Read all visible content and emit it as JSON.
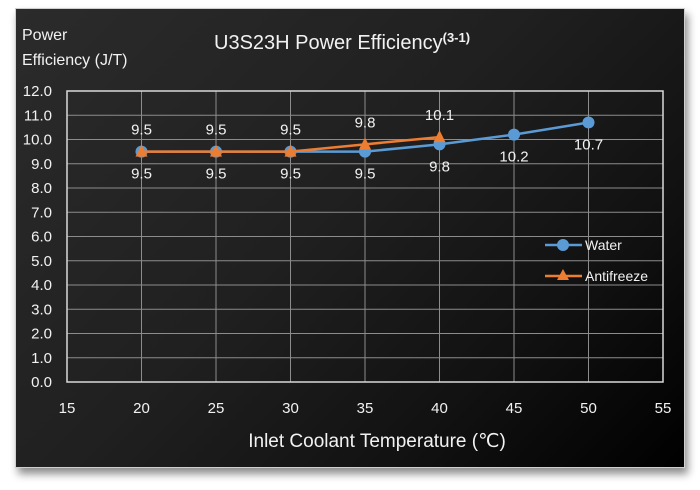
{
  "chart_data": {
    "type": "line",
    "title": "U3S23H Power Efficiency",
    "title_superscript": "(3-1)",
    "ylabel_line1": "Power",
    "ylabel_line2": "Efficiency (J/T)",
    "xlabel": "Inlet Coolant Temperature (℃)",
    "xlim": [
      15,
      55
    ],
    "ylim": [
      0,
      12
    ],
    "xticks": [
      15,
      20,
      25,
      30,
      35,
      40,
      45,
      50,
      55
    ],
    "yticks": [
      "0.0",
      "1.0",
      "2.0",
      "3.0",
      "4.0",
      "5.0",
      "6.0",
      "7.0",
      "8.0",
      "9.0",
      "10.0",
      "11.0",
      "12.0"
    ],
    "grid": true,
    "legend_position": "right",
    "series": [
      {
        "name": "Water",
        "color": "#5b9bd5",
        "marker": "circle",
        "x": [
          20,
          25,
          30,
          35,
          40,
          45,
          50
        ],
        "values": [
          9.5,
          9.5,
          9.5,
          9.5,
          9.8,
          10.2,
          10.7
        ],
        "labels": [
          "9.5",
          "9.5",
          "9.5",
          "9.5",
          "9.8",
          "10.2",
          "10.7"
        ],
        "label_position": "below"
      },
      {
        "name": "Antifreeze",
        "color": "#ed7d31",
        "marker": "triangle",
        "x": [
          20,
          25,
          30,
          35,
          40
        ],
        "values": [
          9.5,
          9.5,
          9.5,
          9.8,
          10.1
        ],
        "labels": [
          "9.5",
          "9.5",
          "9.5",
          "9.8",
          "10.1"
        ],
        "label_position": "above"
      }
    ]
  }
}
